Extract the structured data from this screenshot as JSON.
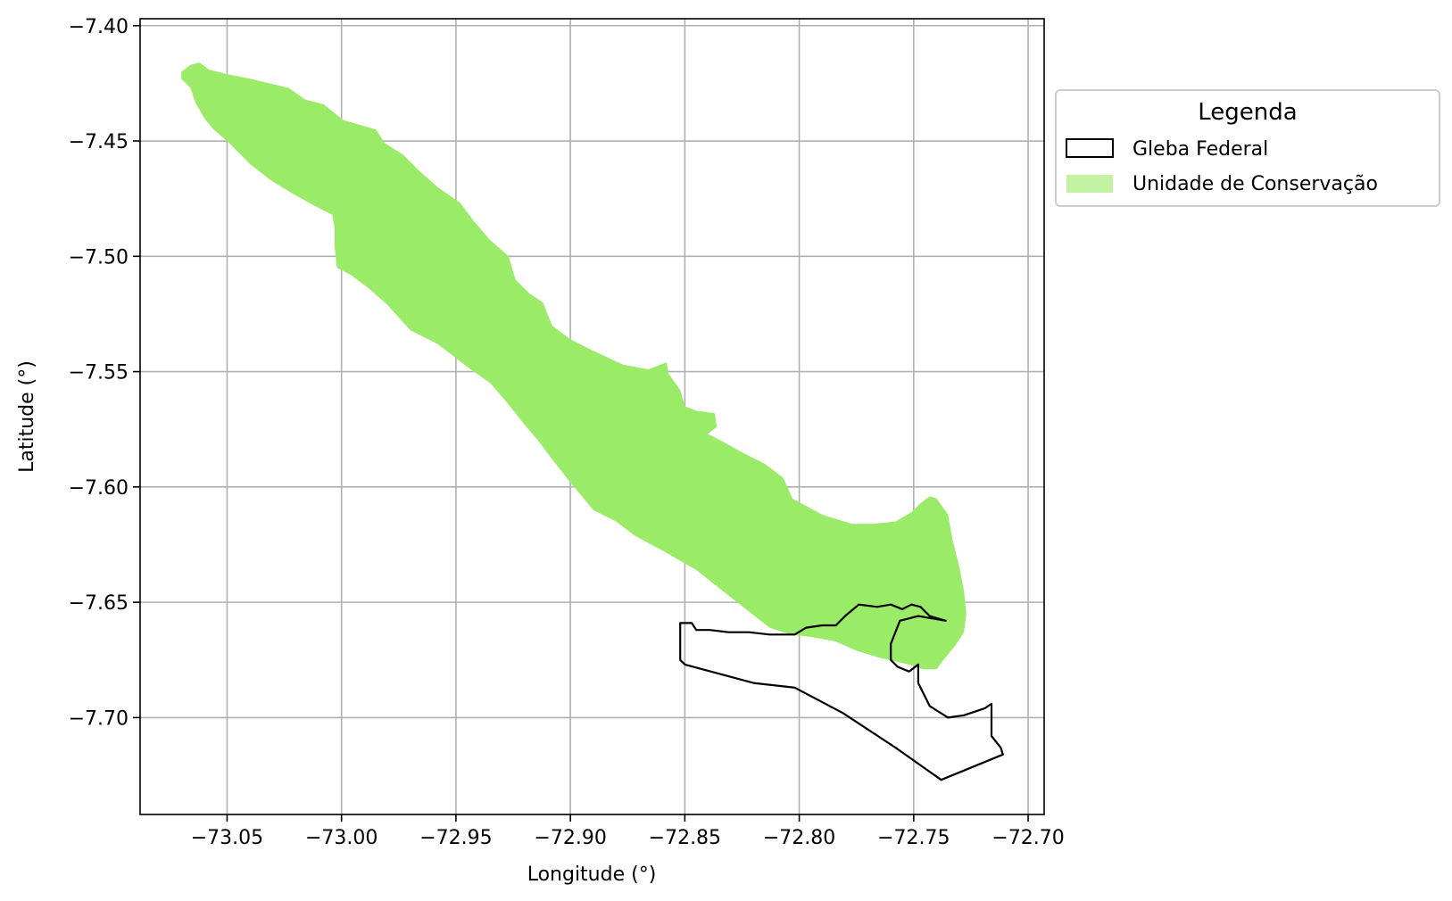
{
  "chart_data": {
    "type": "map",
    "xlabel": "Longitude (°)",
    "ylabel": "Latitude (°)",
    "xlim": [
      -73.088,
      -72.693
    ],
    "ylim": [
      -7.742,
      -7.397
    ],
    "xticks": [
      -73.05,
      -73.0,
      -72.95,
      -72.9,
      -72.85,
      -72.8,
      -72.75,
      -72.7
    ],
    "xtick_labels": [
      "−73.05",
      "−73.00",
      "−72.95",
      "−72.90",
      "−72.85",
      "−72.80",
      "−72.75",
      "−72.70"
    ],
    "yticks": [
      -7.4,
      -7.45,
      -7.5,
      -7.55,
      -7.6,
      -7.65,
      -7.7
    ],
    "ytick_labels": [
      "−7.40",
      "−7.45",
      "−7.50",
      "−7.55",
      "−7.60",
      "−7.65",
      "−7.70"
    ],
    "grid": true,
    "legend": {
      "title": "Legenda",
      "placement": "outside-right-top",
      "entries": [
        {
          "label": "Gleba Federal",
          "style": "outline",
          "color": "#000000"
        },
        {
          "label": "Unidade de Conservação",
          "style": "fill",
          "color": "#9aeb68"
        }
      ]
    },
    "layers": [
      {
        "name": "Unidade de Conservação",
        "fill": "#9aeb68",
        "coordinates": [
          [
            -73.07,
            -7.42
          ],
          [
            -73.066,
            -7.417
          ],
          [
            -73.062,
            -7.416
          ],
          [
            -73.058,
            -7.419
          ],
          [
            -73.05,
            -7.421
          ],
          [
            -73.04,
            -7.423
          ],
          [
            -73.023,
            -7.427
          ],
          [
            -73.016,
            -7.432
          ],
          [
            -73.008,
            -7.434
          ],
          [
            -72.999,
            -7.441
          ],
          [
            -72.985,
            -7.445
          ],
          [
            -72.981,
            -7.451
          ],
          [
            -72.973,
            -7.456
          ],
          [
            -72.966,
            -7.463
          ],
          [
            -72.958,
            -7.47
          ],
          [
            -72.948,
            -7.477
          ],
          [
            -72.942,
            -7.485
          ],
          [
            -72.935,
            -7.493
          ],
          [
            -72.927,
            -7.5
          ],
          [
            -72.924,
            -7.51
          ],
          [
            -72.918,
            -7.516
          ],
          [
            -72.912,
            -7.52
          ],
          [
            -72.908,
            -7.53
          ],
          [
            -72.9,
            -7.536
          ],
          [
            -72.89,
            -7.541
          ],
          [
            -72.877,
            -7.547
          ],
          [
            -72.866,
            -7.549
          ],
          [
            -72.858,
            -7.546
          ],
          [
            -72.857,
            -7.551
          ],
          [
            -72.852,
            -7.558
          ],
          [
            -72.85,
            -7.565
          ],
          [
            -72.845,
            -7.567
          ],
          [
            -72.837,
            -7.568
          ],
          [
            -72.836,
            -7.574
          ],
          [
            -72.84,
            -7.577
          ],
          [
            -72.834,
            -7.58
          ],
          [
            -72.825,
            -7.585
          ],
          [
            -72.815,
            -7.59
          ],
          [
            -72.807,
            -7.596
          ],
          [
            -72.803,
            -7.605
          ],
          [
            -72.79,
            -7.612
          ],
          [
            -72.777,
            -7.616
          ],
          [
            -72.768,
            -7.616
          ],
          [
            -72.758,
            -7.615
          ],
          [
            -72.751,
            -7.611
          ],
          [
            -72.747,
            -7.607
          ],
          [
            -72.743,
            -7.604
          ],
          [
            -72.74,
            -7.605
          ],
          [
            -72.735,
            -7.612
          ],
          [
            -72.733,
            -7.623
          ],
          [
            -72.73,
            -7.635
          ],
          [
            -72.728,
            -7.645
          ],
          [
            -72.727,
            -7.655
          ],
          [
            -72.728,
            -7.663
          ],
          [
            -72.732,
            -7.669
          ],
          [
            -72.737,
            -7.675
          ],
          [
            -72.74,
            -7.679
          ],
          [
            -72.746,
            -7.679
          ],
          [
            -72.752,
            -7.677
          ],
          [
            -72.765,
            -7.674
          ],
          [
            -72.775,
            -7.671
          ],
          [
            -72.784,
            -7.667
          ],
          [
            -72.795,
            -7.665
          ],
          [
            -72.804,
            -7.664
          ],
          [
            -72.813,
            -7.661
          ],
          [
            -72.822,
            -7.654
          ],
          [
            -72.831,
            -7.647
          ],
          [
            -72.845,
            -7.636
          ],
          [
            -72.859,
            -7.628
          ],
          [
            -72.872,
            -7.621
          ],
          [
            -72.88,
            -7.615
          ],
          [
            -72.89,
            -7.61
          ],
          [
            -72.9,
            -7.598
          ],
          [
            -72.908,
            -7.588
          ],
          [
            -72.914,
            -7.58
          ],
          [
            -72.92,
            -7.573
          ],
          [
            -72.928,
            -7.563
          ],
          [
            -72.935,
            -7.555
          ],
          [
            -72.945,
            -7.548
          ],
          [
            -72.958,
            -7.538
          ],
          [
            -72.97,
            -7.532
          ],
          [
            -72.98,
            -7.521
          ],
          [
            -72.988,
            -7.514
          ],
          [
            -72.996,
            -7.508
          ],
          [
            -73.002,
            -7.505
          ],
          [
            -73.003,
            -7.496
          ],
          [
            -73.003,
            -7.488
          ],
          [
            -73.004,
            -7.482
          ],
          [
            -73.012,
            -7.478
          ],
          [
            -73.021,
            -7.473
          ],
          [
            -73.031,
            -7.467
          ],
          [
            -73.04,
            -7.46
          ],
          [
            -73.05,
            -7.45
          ],
          [
            -73.056,
            -7.445
          ],
          [
            -73.06,
            -7.44
          ],
          [
            -73.064,
            -7.433
          ],
          [
            -73.066,
            -7.427
          ],
          [
            -73.07,
            -7.423
          ]
        ]
      },
      {
        "name": "Gleba Federal",
        "stroke": "#000000",
        "coordinates": [
          [
            -72.852,
            -7.659
          ],
          [
            -72.847,
            -7.659
          ],
          [
            -72.845,
            -7.662
          ],
          [
            -72.839,
            -7.662
          ],
          [
            -72.831,
            -7.663
          ],
          [
            -72.822,
            -7.663
          ],
          [
            -72.813,
            -7.664
          ],
          [
            -72.802,
            -7.664
          ],
          [
            -72.797,
            -7.661
          ],
          [
            -72.79,
            -7.66
          ],
          [
            -72.784,
            -7.66
          ],
          [
            -72.78,
            -7.656
          ],
          [
            -72.774,
            -7.651
          ],
          [
            -72.766,
            -7.652
          ],
          [
            -72.76,
            -7.651
          ],
          [
            -72.755,
            -7.653
          ],
          [
            -72.751,
            -7.651
          ],
          [
            -72.747,
            -7.652
          ],
          [
            -72.743,
            -7.656
          ],
          [
            -72.736,
            -7.658
          ],
          [
            -72.742,
            -7.657
          ],
          [
            -72.748,
            -7.656
          ],
          [
            -72.756,
            -7.658
          ],
          [
            -72.76,
            -7.668
          ],
          [
            -72.76,
            -7.675
          ],
          [
            -72.757,
            -7.678
          ],
          [
            -72.752,
            -7.68
          ],
          [
            -72.748,
            -7.677
          ],
          [
            -72.748,
            -7.685
          ],
          [
            -72.743,
            -7.695
          ],
          [
            -72.735,
            -7.7
          ],
          [
            -72.728,
            -7.699
          ],
          [
            -72.719,
            -7.696
          ],
          [
            -72.716,
            -7.694
          ],
          [
            -72.716,
            -7.708
          ],
          [
            -72.712,
            -7.713
          ],
          [
            -72.711,
            -7.716
          ],
          [
            -72.738,
            -7.727
          ],
          [
            -72.758,
            -7.713
          ],
          [
            -72.781,
            -7.698
          ],
          [
            -72.802,
            -7.687
          ],
          [
            -72.82,
            -7.685
          ],
          [
            -72.85,
            -7.677
          ],
          [
            -72.852,
            -7.675
          ]
        ]
      }
    ]
  }
}
